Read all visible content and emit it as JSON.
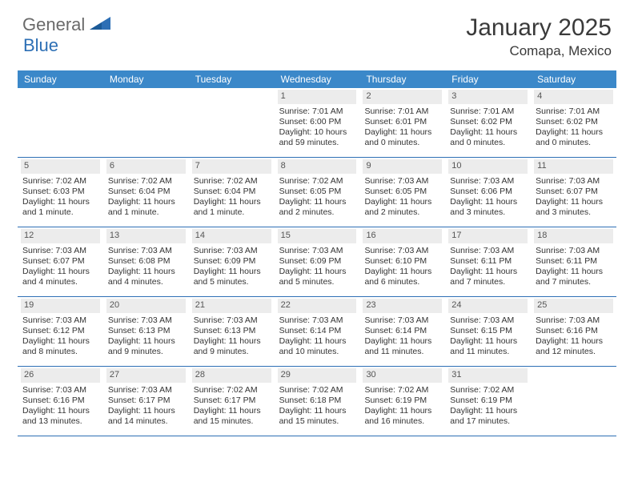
{
  "logo": {
    "general": "General",
    "blue": "Blue"
  },
  "title": "January 2025",
  "subtitle": "Comapa, Mexico",
  "colors": {
    "header_bg": "#3b88c9",
    "divider": "#2d6fb5",
    "daynum_bg": "#ececec",
    "logo_gray": "#6a6a6a",
    "logo_blue": "#2d6fb5",
    "text": "#333333"
  },
  "day_headers": [
    "Sunday",
    "Monday",
    "Tuesday",
    "Wednesday",
    "Thursday",
    "Friday",
    "Saturday"
  ],
  "weeks": [
    [
      null,
      null,
      null,
      {
        "n": "1",
        "sr": "7:01 AM",
        "ss": "6:00 PM",
        "dl": "10 hours and 59 minutes."
      },
      {
        "n": "2",
        "sr": "7:01 AM",
        "ss": "6:01 PM",
        "dl": "11 hours and 0 minutes."
      },
      {
        "n": "3",
        "sr": "7:01 AM",
        "ss": "6:02 PM",
        "dl": "11 hours and 0 minutes."
      },
      {
        "n": "4",
        "sr": "7:01 AM",
        "ss": "6:02 PM",
        "dl": "11 hours and 0 minutes."
      }
    ],
    [
      {
        "n": "5",
        "sr": "7:02 AM",
        "ss": "6:03 PM",
        "dl": "11 hours and 1 minute."
      },
      {
        "n": "6",
        "sr": "7:02 AM",
        "ss": "6:04 PM",
        "dl": "11 hours and 1 minute."
      },
      {
        "n": "7",
        "sr": "7:02 AM",
        "ss": "6:04 PM",
        "dl": "11 hours and 1 minute."
      },
      {
        "n": "8",
        "sr": "7:02 AM",
        "ss": "6:05 PM",
        "dl": "11 hours and 2 minutes."
      },
      {
        "n": "9",
        "sr": "7:03 AM",
        "ss": "6:05 PM",
        "dl": "11 hours and 2 minutes."
      },
      {
        "n": "10",
        "sr": "7:03 AM",
        "ss": "6:06 PM",
        "dl": "11 hours and 3 minutes."
      },
      {
        "n": "11",
        "sr": "7:03 AM",
        "ss": "6:07 PM",
        "dl": "11 hours and 3 minutes."
      }
    ],
    [
      {
        "n": "12",
        "sr": "7:03 AM",
        "ss": "6:07 PM",
        "dl": "11 hours and 4 minutes."
      },
      {
        "n": "13",
        "sr": "7:03 AM",
        "ss": "6:08 PM",
        "dl": "11 hours and 4 minutes."
      },
      {
        "n": "14",
        "sr": "7:03 AM",
        "ss": "6:09 PM",
        "dl": "11 hours and 5 minutes."
      },
      {
        "n": "15",
        "sr": "7:03 AM",
        "ss": "6:09 PM",
        "dl": "11 hours and 5 minutes."
      },
      {
        "n": "16",
        "sr": "7:03 AM",
        "ss": "6:10 PM",
        "dl": "11 hours and 6 minutes."
      },
      {
        "n": "17",
        "sr": "7:03 AM",
        "ss": "6:11 PM",
        "dl": "11 hours and 7 minutes."
      },
      {
        "n": "18",
        "sr": "7:03 AM",
        "ss": "6:11 PM",
        "dl": "11 hours and 7 minutes."
      }
    ],
    [
      {
        "n": "19",
        "sr": "7:03 AM",
        "ss": "6:12 PM",
        "dl": "11 hours and 8 minutes."
      },
      {
        "n": "20",
        "sr": "7:03 AM",
        "ss": "6:13 PM",
        "dl": "11 hours and 9 minutes."
      },
      {
        "n": "21",
        "sr": "7:03 AM",
        "ss": "6:13 PM",
        "dl": "11 hours and 9 minutes."
      },
      {
        "n": "22",
        "sr": "7:03 AM",
        "ss": "6:14 PM",
        "dl": "11 hours and 10 minutes."
      },
      {
        "n": "23",
        "sr": "7:03 AM",
        "ss": "6:14 PM",
        "dl": "11 hours and 11 minutes."
      },
      {
        "n": "24",
        "sr": "7:03 AM",
        "ss": "6:15 PM",
        "dl": "11 hours and 11 minutes."
      },
      {
        "n": "25",
        "sr": "7:03 AM",
        "ss": "6:16 PM",
        "dl": "11 hours and 12 minutes."
      }
    ],
    [
      {
        "n": "26",
        "sr": "7:03 AM",
        "ss": "6:16 PM",
        "dl": "11 hours and 13 minutes."
      },
      {
        "n": "27",
        "sr": "7:03 AM",
        "ss": "6:17 PM",
        "dl": "11 hours and 14 minutes."
      },
      {
        "n": "28",
        "sr": "7:02 AM",
        "ss": "6:17 PM",
        "dl": "11 hours and 15 minutes."
      },
      {
        "n": "29",
        "sr": "7:02 AM",
        "ss": "6:18 PM",
        "dl": "11 hours and 15 minutes."
      },
      {
        "n": "30",
        "sr": "7:02 AM",
        "ss": "6:19 PM",
        "dl": "11 hours and 16 minutes."
      },
      {
        "n": "31",
        "sr": "7:02 AM",
        "ss": "6:19 PM",
        "dl": "11 hours and 17 minutes."
      },
      null
    ]
  ],
  "labels": {
    "sunrise": "Sunrise:",
    "sunset": "Sunset:",
    "daylight": "Daylight:"
  }
}
